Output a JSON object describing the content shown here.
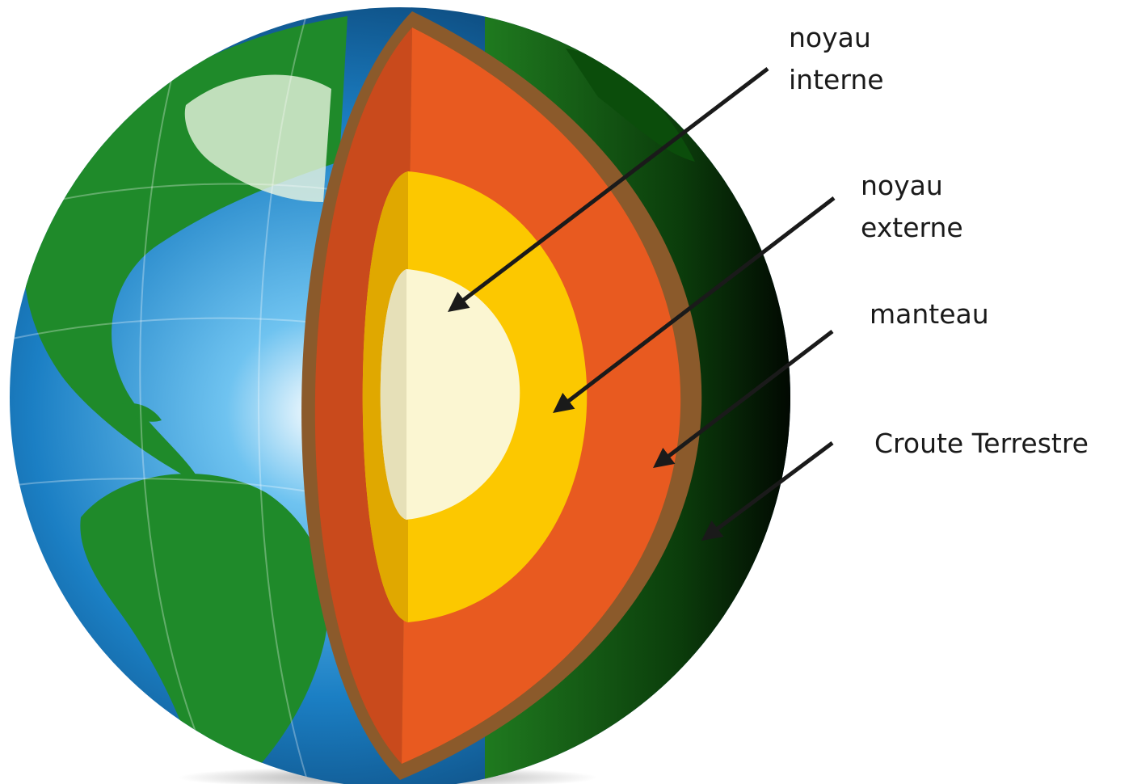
{
  "labels": [
    {
      "lines": [
        "noyau",
        "interne"
      ]
    },
    {
      "lines": [
        "noyau",
        "externe"
      ]
    },
    {
      "lines": [
        "manteau"
      ]
    },
    {
      "lines": [
        "Croute Terrestre"
      ]
    }
  ]
}
